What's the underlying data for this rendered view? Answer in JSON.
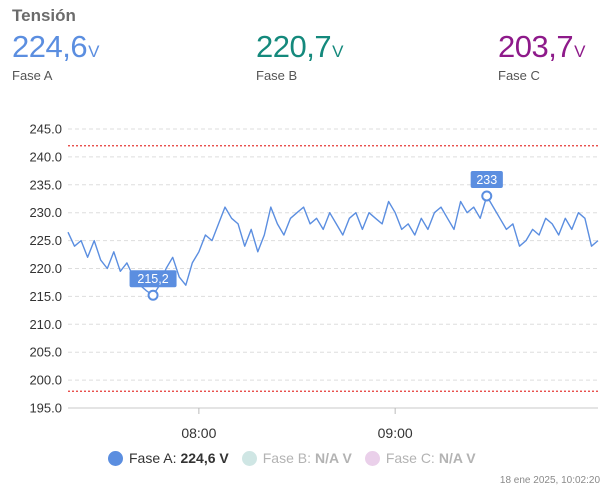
{
  "title": "Tensión",
  "readouts": [
    {
      "value": "224,6",
      "unit": "V",
      "name": "Fase A"
    },
    {
      "value": "220,7",
      "unit": "V",
      "name": "Fase B"
    },
    {
      "value": "203,7",
      "unit": "V",
      "name": "Fase C"
    }
  ],
  "legend": {
    "a_label": "Fase A:",
    "a_value": "224,6 V",
    "b_label": "Fase B:",
    "b_value": "N/A V",
    "c_label": "Fase C:",
    "c_value": "N/A V"
  },
  "timestamp": "18 ene 2025, 10:02:20",
  "colors": {
    "fase_a": "#5b8ee0",
    "fase_b": "#14897c",
    "fase_c": "#8e1a8a",
    "limit": "#e53935"
  },
  "chart_data": {
    "type": "line",
    "title": "",
    "xlabel": "",
    "ylabel": "",
    "ylim": [
      195,
      245
    ],
    "y_ticks": [
      "245.0",
      "240.0",
      "235.0",
      "230.0",
      "225.0",
      "220.0",
      "215.0",
      "210.0",
      "205.0",
      "200.0",
      "195.0"
    ],
    "x_ticks": [
      {
        "label": "08:00",
        "t": "08:00"
      },
      {
        "label": "09:00",
        "t": "09:00"
      }
    ],
    "x_range": [
      "07:20",
      "10:02"
    ],
    "limits": [
      242,
      198
    ],
    "grid": true,
    "series": [
      {
        "name": "Fase A",
        "x": [
          "07:20",
          "07:22",
          "07:24",
          "07:26",
          "07:28",
          "07:30",
          "07:32",
          "07:34",
          "07:36",
          "07:38",
          "07:40",
          "07:42",
          "07:44",
          "07:46",
          "07:48",
          "07:50",
          "07:52",
          "07:54",
          "07:56",
          "07:58",
          "08:00",
          "08:02",
          "08:04",
          "08:06",
          "08:08",
          "08:10",
          "08:12",
          "08:14",
          "08:16",
          "08:18",
          "08:20",
          "08:22",
          "08:24",
          "08:26",
          "08:28",
          "08:30",
          "08:32",
          "08:34",
          "08:36",
          "08:38",
          "08:40",
          "08:42",
          "08:44",
          "08:46",
          "08:48",
          "08:50",
          "08:52",
          "08:54",
          "08:56",
          "08:58",
          "09:00",
          "09:02",
          "09:04",
          "09:06",
          "09:08",
          "09:10",
          "09:12",
          "09:14",
          "09:16",
          "09:18",
          "09:20",
          "09:22",
          "09:24",
          "09:26",
          "09:28",
          "09:30",
          "09:32",
          "09:34",
          "09:36",
          "09:38",
          "09:40",
          "09:42",
          "09:44",
          "09:46",
          "09:48",
          "09:50",
          "09:52",
          "09:54",
          "09:56",
          "09:58",
          "10:00",
          "10:02"
        ],
        "values": [
          226.5,
          224,
          225,
          222,
          225,
          221.5,
          220,
          223,
          219.5,
          221,
          218.5,
          217,
          216,
          215.2,
          217,
          220,
          222,
          218.5,
          217,
          221,
          223,
          226,
          225,
          228,
          231,
          229,
          228,
          224,
          227,
          223,
          226,
          231,
          228,
          226,
          229,
          230,
          231,
          228,
          229,
          227,
          230,
          228,
          226,
          229,
          230,
          227,
          230,
          229,
          228,
          232,
          230,
          227,
          228,
          226,
          229,
          227,
          230,
          231,
          229,
          227,
          232,
          230,
          231,
          229,
          233,
          231,
          229,
          227,
          228,
          224,
          225,
          227,
          226,
          229,
          228,
          226,
          229,
          227,
          230,
          229,
          224,
          225
        ],
        "annotations": [
          {
            "label": "215,2",
            "x": "07:46",
            "y": 215.2
          },
          {
            "label": "233",
            "x": "09:28",
            "y": 233
          }
        ]
      }
    ]
  }
}
